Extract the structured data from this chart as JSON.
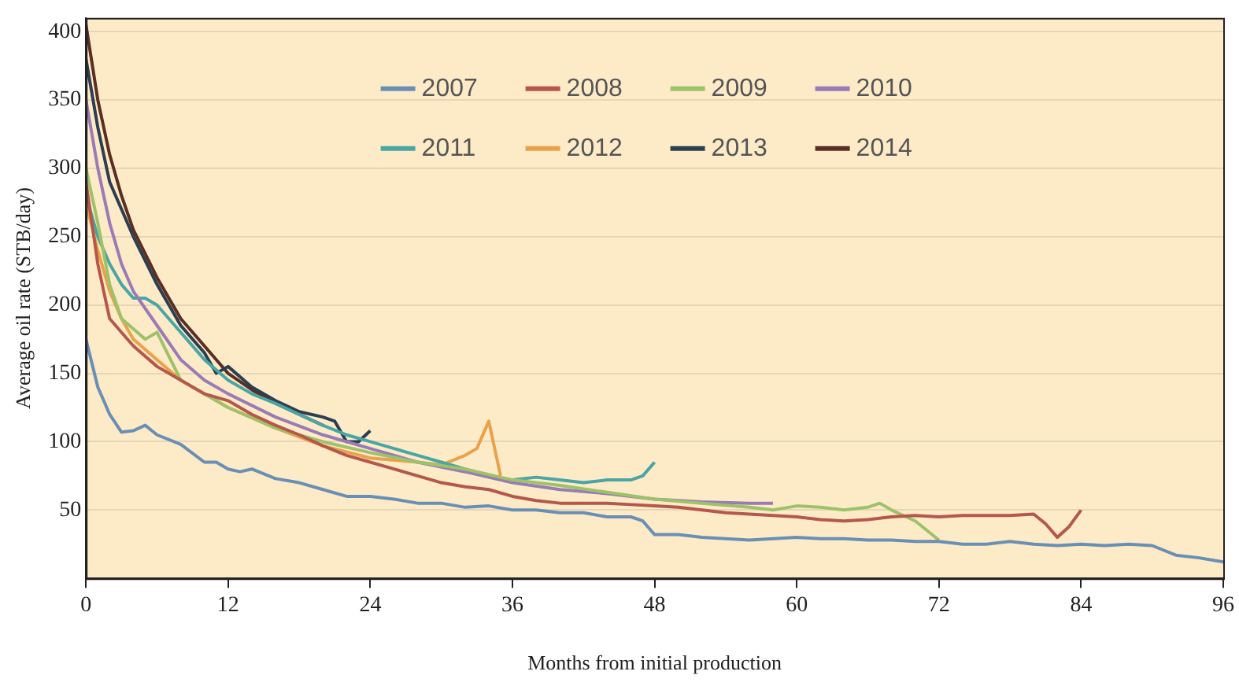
{
  "chart_data": {
    "type": "line",
    "xlabel": "Months from initial production",
    "ylabel": "Average oil rate (STB/day)",
    "xlim": [
      0,
      96
    ],
    "xticks": [
      0,
      12,
      24,
      36,
      48,
      60,
      72,
      84,
      96
    ],
    "ylim": [
      0,
      410
    ],
    "yticks": [
      50,
      100,
      150,
      200,
      250,
      300,
      350,
      400
    ],
    "grid": "y",
    "legend": "top",
    "marker": "none",
    "line_style": "solid",
    "series": [
      {
        "name": "2007",
        "color": "#6a8fb5",
        "x": [
          0,
          1,
          2,
          3,
          4,
          5,
          6,
          8,
          10,
          11,
          12,
          13,
          14,
          16,
          18,
          20,
          22,
          24,
          26,
          28,
          30,
          32,
          34,
          36,
          38,
          40,
          42,
          44,
          46,
          47,
          48,
          50,
          52,
          54,
          56,
          58,
          60,
          62,
          64,
          66,
          68,
          70,
          72,
          74,
          76,
          78,
          80,
          82,
          84,
          86,
          88,
          90,
          92,
          94,
          96
        ],
        "values": [
          175,
          140,
          120,
          107,
          108,
          112,
          105,
          98,
          85,
          85,
          80,
          78,
          80,
          73,
          70,
          65,
          60,
          60,
          58,
          55,
          55,
          52,
          53,
          50,
          50,
          48,
          48,
          45,
          45,
          42,
          32,
          32,
          30,
          29,
          28,
          29,
          30,
          29,
          29,
          28,
          28,
          27,
          27,
          25,
          25,
          27,
          25,
          24,
          25,
          24,
          25,
          24,
          17,
          15,
          12
        ]
      },
      {
        "name": "2008",
        "color": "#b5574a",
        "x": [
          0,
          1,
          2,
          3,
          4,
          6,
          8,
          10,
          12,
          14,
          16,
          18,
          20,
          22,
          24,
          26,
          28,
          30,
          32,
          34,
          36,
          38,
          40,
          42,
          44,
          46,
          48,
          50,
          52,
          54,
          56,
          58,
          60,
          62,
          64,
          66,
          68,
          70,
          72,
          74,
          76,
          78,
          80,
          81,
          82,
          83,
          84
        ],
        "values": [
          290,
          230,
          190,
          180,
          170,
          155,
          145,
          135,
          130,
          120,
          112,
          105,
          97,
          90,
          85,
          80,
          75,
          70,
          67,
          65,
          60,
          57,
          55,
          55,
          55,
          54,
          53,
          52,
          50,
          48,
          47,
          46,
          45,
          43,
          42,
          43,
          45,
          46,
          45,
          46,
          46,
          46,
          47,
          40,
          30,
          38,
          50
        ]
      },
      {
        "name": "2009",
        "color": "#9dc26a",
        "x": [
          0,
          1,
          2,
          3,
          5,
          6,
          8,
          12,
          16,
          20,
          24,
          28,
          32,
          36,
          40,
          44,
          48,
          52,
          56,
          58,
          60,
          62,
          64,
          66,
          67,
          68,
          70,
          72
        ],
        "values": [
          300,
          260,
          215,
          190,
          175,
          180,
          145,
          125,
          110,
          100,
          92,
          85,
          80,
          72,
          68,
          63,
          58,
          55,
          52,
          50,
          53,
          52,
          50,
          52,
          55,
          50,
          42,
          28
        ]
      },
      {
        "name": "2010",
        "color": "#9a7bb5",
        "x": [
          0,
          1,
          2,
          3,
          4,
          6,
          8,
          10,
          12,
          16,
          20,
          24,
          28,
          32,
          36,
          40,
          44,
          48,
          52,
          56,
          58
        ],
        "values": [
          350,
          300,
          260,
          230,
          210,
          185,
          160,
          145,
          135,
          118,
          105,
          95,
          85,
          78,
          70,
          65,
          62,
          58,
          56,
          55,
          55
        ]
      },
      {
        "name": "2011",
        "color": "#4aa5a5",
        "x": [
          0,
          1,
          2,
          3,
          4,
          5,
          6,
          8,
          10,
          12,
          14,
          16,
          18,
          20,
          22,
          24,
          26,
          28,
          30,
          32,
          34,
          36,
          38,
          40,
          42,
          44,
          46,
          47,
          48
        ],
        "values": [
          280,
          250,
          230,
          215,
          205,
          205,
          200,
          180,
          160,
          145,
          135,
          128,
          120,
          112,
          105,
          100,
          95,
          90,
          85,
          80,
          75,
          72,
          74,
          72,
          70,
          72,
          72,
          75,
          85
        ]
      },
      {
        "name": "2012",
        "color": "#e9a24a",
        "x": [
          0,
          1,
          2,
          3,
          4,
          6,
          8,
          10,
          12,
          16,
          20,
          24,
          28,
          30,
          32,
          33,
          34,
          35
        ],
        "values": [
          275,
          240,
          210,
          190,
          175,
          160,
          145,
          135,
          125,
          110,
          97,
          88,
          85,
          83,
          90,
          95,
          115,
          75
        ]
      },
      {
        "name": "2013",
        "color": "#2d3e50",
        "x": [
          0,
          1,
          2,
          3,
          4,
          6,
          8,
          10,
          11,
          12,
          14,
          16,
          18,
          20,
          21,
          22,
          23,
          24
        ],
        "values": [
          380,
          330,
          290,
          270,
          250,
          215,
          185,
          165,
          150,
          155,
          140,
          130,
          122,
          118,
          115,
          100,
          100,
          108
        ]
      },
      {
        "name": "2014",
        "color": "#5a2e22",
        "x": [
          0,
          1,
          2,
          3,
          4,
          6,
          8,
          10,
          11,
          12,
          14,
          16,
          18,
          20
        ],
        "values": [
          405,
          350,
          310,
          280,
          255,
          220,
          190,
          170,
          160,
          150,
          138,
          128,
          120,
          112
        ]
      }
    ]
  }
}
